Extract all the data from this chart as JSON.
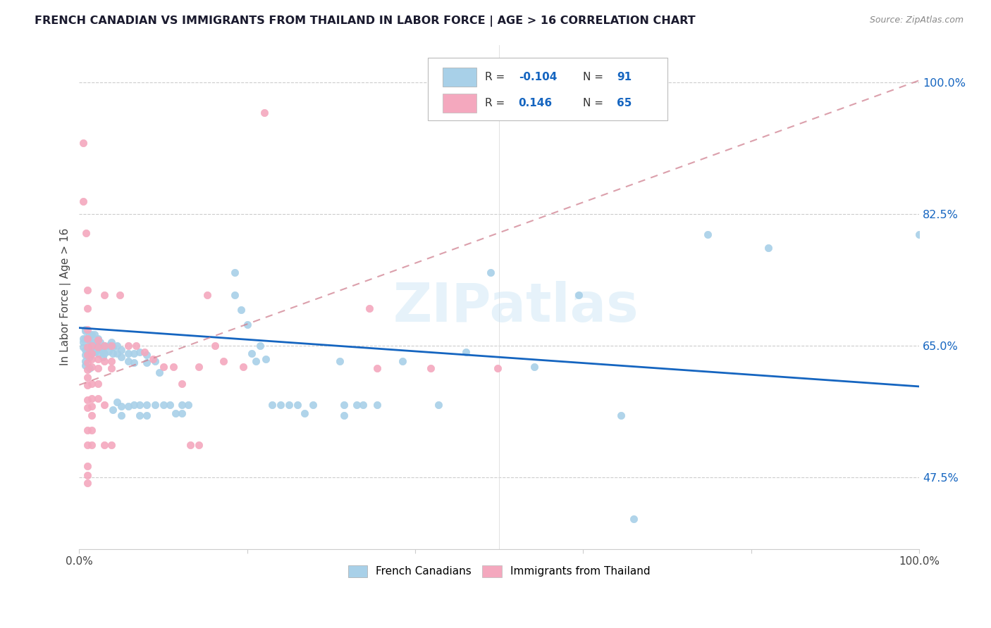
{
  "title": "FRENCH CANADIAN VS IMMIGRANTS FROM THAILAND IN LABOR FORCE | AGE > 16 CORRELATION CHART",
  "source": "Source: ZipAtlas.com",
  "ylabel": "In Labor Force | Age > 16",
  "ytick_labels": [
    "47.5%",
    "65.0%",
    "82.5%",
    "100.0%"
  ],
  "ytick_values": [
    0.475,
    0.65,
    0.825,
    1.0
  ],
  "xlim": [
    0.0,
    1.0
  ],
  "ylim": [
    0.38,
    1.05
  ],
  "blue_color": "#A8D0E8",
  "pink_color": "#F4A8BE",
  "blue_line_color": "#1565C0",
  "pink_line_color": "#D08090",
  "watermark": "ZIPatlas",
  "legend_blue_label": "French Canadians",
  "legend_pink_label": "Immigrants from Thailand",
  "blue_line_x0": 0.0,
  "blue_line_y0": 0.674,
  "blue_line_x1": 1.0,
  "blue_line_y1": 0.596,
  "pink_line_x0": 0.0,
  "pink_line_y0": 0.598,
  "pink_line_x1": 1.0,
  "pink_line_y1": 1.003,
  "blue_scatter": [
    [
      0.005,
      0.655
    ],
    [
      0.005,
      0.648
    ],
    [
      0.005,
      0.66
    ],
    [
      0.007,
      0.645
    ],
    [
      0.007,
      0.66
    ],
    [
      0.007,
      0.67
    ],
    [
      0.007,
      0.638
    ],
    [
      0.007,
      0.63
    ],
    [
      0.007,
      0.672
    ],
    [
      0.007,
      0.624
    ],
    [
      0.012,
      0.658
    ],
    [
      0.012,
      0.65
    ],
    [
      0.012,
      0.643
    ],
    [
      0.012,
      0.665
    ],
    [
      0.012,
      0.635
    ],
    [
      0.012,
      0.62
    ],
    [
      0.015,
      0.665
    ],
    [
      0.015,
      0.656
    ],
    [
      0.015,
      0.648
    ],
    [
      0.015,
      0.64
    ],
    [
      0.018,
      0.655
    ],
    [
      0.018,
      0.665
    ],
    [
      0.02,
      0.65
    ],
    [
      0.02,
      0.643
    ],
    [
      0.022,
      0.66
    ],
    [
      0.022,
      0.648
    ],
    [
      0.022,
      0.64
    ],
    [
      0.025,
      0.655
    ],
    [
      0.025,
      0.648
    ],
    [
      0.028,
      0.643
    ],
    [
      0.028,
      0.635
    ],
    [
      0.03,
      0.65
    ],
    [
      0.03,
      0.64
    ],
    [
      0.035,
      0.65
    ],
    [
      0.035,
      0.643
    ],
    [
      0.038,
      0.655
    ],
    [
      0.04,
      0.648
    ],
    [
      0.04,
      0.64
    ],
    [
      0.04,
      0.565
    ],
    [
      0.045,
      0.65
    ],
    [
      0.045,
      0.64
    ],
    [
      0.045,
      0.575
    ],
    [
      0.05,
      0.645
    ],
    [
      0.05,
      0.635
    ],
    [
      0.05,
      0.57
    ],
    [
      0.05,
      0.558
    ],
    [
      0.058,
      0.64
    ],
    [
      0.058,
      0.63
    ],
    [
      0.058,
      0.57
    ],
    [
      0.065,
      0.64
    ],
    [
      0.065,
      0.628
    ],
    [
      0.065,
      0.572
    ],
    [
      0.072,
      0.642
    ],
    [
      0.072,
      0.572
    ],
    [
      0.072,
      0.558
    ],
    [
      0.08,
      0.638
    ],
    [
      0.08,
      0.628
    ],
    [
      0.08,
      0.572
    ],
    [
      0.08,
      0.558
    ],
    [
      0.09,
      0.63
    ],
    [
      0.09,
      0.572
    ],
    [
      0.095,
      0.615
    ],
    [
      0.1,
      0.572
    ],
    [
      0.108,
      0.572
    ],
    [
      0.115,
      0.56
    ],
    [
      0.122,
      0.572
    ],
    [
      0.122,
      0.56
    ],
    [
      0.13,
      0.572
    ],
    [
      0.185,
      0.748
    ],
    [
      0.185,
      0.718
    ],
    [
      0.193,
      0.698
    ],
    [
      0.2,
      0.678
    ],
    [
      0.205,
      0.64
    ],
    [
      0.21,
      0.63
    ],
    [
      0.215,
      0.65
    ],
    [
      0.222,
      0.632
    ],
    [
      0.23,
      0.572
    ],
    [
      0.24,
      0.572
    ],
    [
      0.25,
      0.572
    ],
    [
      0.26,
      0.572
    ],
    [
      0.268,
      0.56
    ],
    [
      0.278,
      0.572
    ],
    [
      0.31,
      0.63
    ],
    [
      0.315,
      0.572
    ],
    [
      0.315,
      0.558
    ],
    [
      0.33,
      0.572
    ],
    [
      0.338,
      0.572
    ],
    [
      0.355,
      0.572
    ],
    [
      0.385,
      0.63
    ],
    [
      0.428,
      0.572
    ],
    [
      0.46,
      0.642
    ],
    [
      0.49,
      0.748
    ],
    [
      0.542,
      0.622
    ],
    [
      0.595,
      0.718
    ],
    [
      0.645,
      0.558
    ],
    [
      0.66,
      0.42
    ],
    [
      0.748,
      0.798
    ],
    [
      0.82,
      0.78
    ],
    [
      1.0,
      0.798
    ]
  ],
  "pink_scatter": [
    [
      0.005,
      0.92
    ],
    [
      0.005,
      0.842
    ],
    [
      0.008,
      0.8
    ],
    [
      0.01,
      0.724
    ],
    [
      0.01,
      0.7
    ],
    [
      0.01,
      0.672
    ],
    [
      0.01,
      0.66
    ],
    [
      0.01,
      0.648
    ],
    [
      0.01,
      0.638
    ],
    [
      0.01,
      0.628
    ],
    [
      0.01,
      0.618
    ],
    [
      0.01,
      0.608
    ],
    [
      0.01,
      0.598
    ],
    [
      0.01,
      0.578
    ],
    [
      0.01,
      0.568
    ],
    [
      0.01,
      0.538
    ],
    [
      0.01,
      0.518
    ],
    [
      0.01,
      0.49
    ],
    [
      0.01,
      0.478
    ],
    [
      0.01,
      0.468
    ],
    [
      0.015,
      0.65
    ],
    [
      0.015,
      0.64
    ],
    [
      0.015,
      0.632
    ],
    [
      0.015,
      0.622
    ],
    [
      0.015,
      0.6
    ],
    [
      0.015,
      0.58
    ],
    [
      0.015,
      0.57
    ],
    [
      0.015,
      0.558
    ],
    [
      0.015,
      0.538
    ],
    [
      0.015,
      0.518
    ],
    [
      0.022,
      0.658
    ],
    [
      0.022,
      0.648
    ],
    [
      0.022,
      0.632
    ],
    [
      0.022,
      0.62
    ],
    [
      0.022,
      0.6
    ],
    [
      0.022,
      0.58
    ],
    [
      0.03,
      0.718
    ],
    [
      0.03,
      0.65
    ],
    [
      0.03,
      0.63
    ],
    [
      0.03,
      0.572
    ],
    [
      0.03,
      0.518
    ],
    [
      0.038,
      0.65
    ],
    [
      0.038,
      0.63
    ],
    [
      0.038,
      0.62
    ],
    [
      0.038,
      0.518
    ],
    [
      0.048,
      0.718
    ],
    [
      0.058,
      0.65
    ],
    [
      0.068,
      0.65
    ],
    [
      0.078,
      0.642
    ],
    [
      0.088,
      0.632
    ],
    [
      0.1,
      0.622
    ],
    [
      0.112,
      0.622
    ],
    [
      0.122,
      0.6
    ],
    [
      0.132,
      0.518
    ],
    [
      0.142,
      0.622
    ],
    [
      0.142,
      0.518
    ],
    [
      0.152,
      0.718
    ],
    [
      0.162,
      0.65
    ],
    [
      0.172,
      0.63
    ],
    [
      0.195,
      0.622
    ],
    [
      0.22,
      0.96
    ],
    [
      0.345,
      0.7
    ],
    [
      0.355,
      0.62
    ],
    [
      0.418,
      0.62
    ],
    [
      0.498,
      0.62
    ]
  ]
}
